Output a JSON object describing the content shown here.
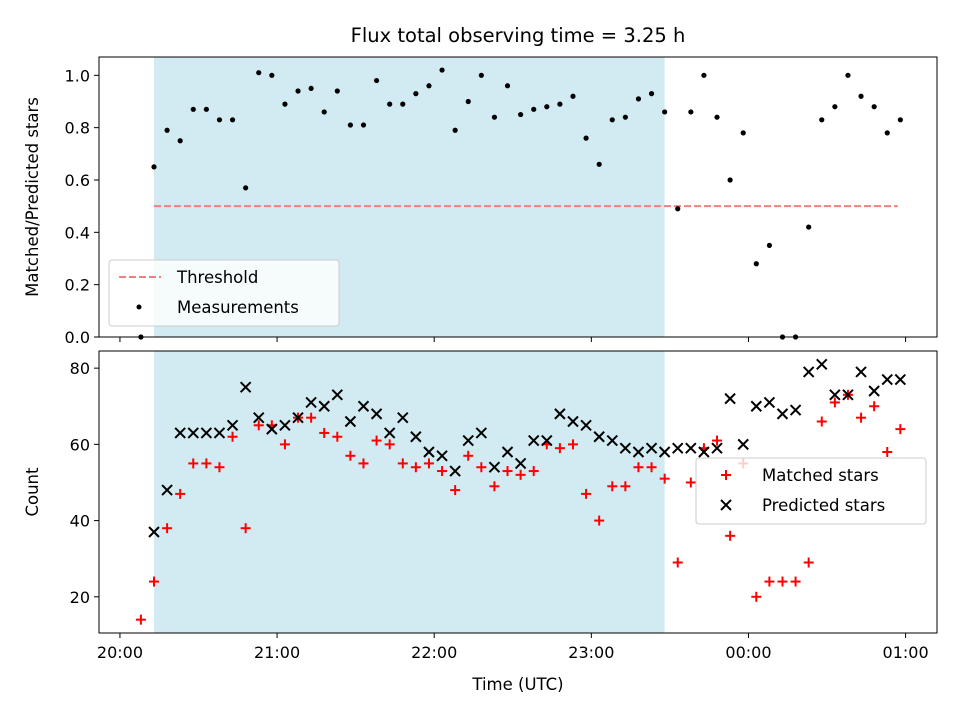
{
  "chart_data": [
    {
      "type": "scatter",
      "title": "Flux total observing time = 3.25 h",
      "xlabel": "",
      "ylabel": "Matched/Predicted stars",
      "xlim": [
        "19:52",
        "01:12"
      ],
      "ylim": [
        0.0,
        1.07
      ],
      "yticks": [
        0.0,
        0.2,
        0.4,
        0.6,
        0.8,
        1.0
      ],
      "ytick_labels": [
        "0.0",
        "0.2",
        "0.4",
        "0.6",
        "0.8",
        "1.0"
      ],
      "xticks": [
        "20:00",
        "21:00",
        "22:00",
        "23:00",
        "00:00",
        "01:00"
      ],
      "shaded_interval": {
        "start": "20:13",
        "end": "23:28",
        "color": "#add8e6"
      },
      "legend": {
        "placement": "lower-left"
      },
      "threshold": {
        "name": "Threshold",
        "value": 0.5,
        "x": [
          "20:13",
          "00:57"
        ],
        "color": "#f08080"
      },
      "series": [
        {
          "name": "Measurements",
          "marker": "dot",
          "color": "#000000",
          "x": [
            "20:08",
            "20:13",
            "20:18",
            "20:23",
            "20:28",
            "20:33",
            "20:38",
            "20:43",
            "20:48",
            "20:53",
            "20:58",
            "21:03",
            "21:08",
            "21:13",
            "21:18",
            "21:23",
            "21:28",
            "21:33",
            "21:38",
            "21:43",
            "21:48",
            "21:53",
            "21:58",
            "22:03",
            "22:08",
            "22:13",
            "22:18",
            "22:23",
            "22:28",
            "22:33",
            "22:38",
            "22:43",
            "22:48",
            "22:53",
            "22:58",
            "23:03",
            "23:08",
            "23:13",
            "23:18",
            "23:23",
            "23:28",
            "23:33",
            "23:38",
            "23:43",
            "23:48",
            "23:53",
            "23:58",
            "00:03",
            "00:08",
            "00:13",
            "00:18",
            "00:23",
            "00:28",
            "00:33",
            "00:38",
            "00:43",
            "00:48",
            "00:53",
            "00:58"
          ],
          "y": [
            0.0,
            0.65,
            0.79,
            0.75,
            0.87,
            0.87,
            0.83,
            0.83,
            0.57,
            1.01,
            1.0,
            0.89,
            0.94,
            0.95,
            0.86,
            0.94,
            0.81,
            0.81,
            0.98,
            0.89,
            0.89,
            0.93,
            0.96,
            1.02,
            0.79,
            0.9,
            1.0,
            0.84,
            0.96,
            0.85,
            0.87,
            0.88,
            0.89,
            0.92,
            0.76,
            0.66,
            0.83,
            0.84,
            0.91,
            0.93,
            0.86,
            0.49,
            0.86,
            1.0,
            0.84,
            0.6,
            0.78,
            0.28,
            0.35,
            0.0,
            0.0,
            0.42,
            0.83,
            0.88,
            1.0,
            0.92,
            0.88,
            0.78,
            0.83
          ]
        }
      ]
    },
    {
      "type": "scatter",
      "title": "",
      "xlabel": "Time (UTC)",
      "ylabel": "Count",
      "xlim": [
        "19:52",
        "01:12"
      ],
      "ylim": [
        10.5,
        84.5
      ],
      "yticks": [
        20,
        40,
        60,
        80
      ],
      "ytick_labels": [
        "20",
        "40",
        "60",
        "80"
      ],
      "xticks": [
        "20:00",
        "21:00",
        "22:00",
        "23:00",
        "00:00",
        "01:00"
      ],
      "shaded_interval": {
        "start": "20:13",
        "end": "23:28",
        "color": "#add8e6"
      },
      "legend": {
        "placement": "center-right"
      },
      "series": [
        {
          "name": "Matched stars",
          "marker": "plus",
          "color": "#ff0000",
          "x": [
            "20:08",
            "20:13",
            "20:18",
            "20:23",
            "20:28",
            "20:33",
            "20:38",
            "20:43",
            "20:48",
            "20:53",
            "20:58",
            "21:03",
            "21:08",
            "21:13",
            "21:18",
            "21:23",
            "21:28",
            "21:33",
            "21:38",
            "21:43",
            "21:48",
            "21:53",
            "21:58",
            "22:03",
            "22:08",
            "22:13",
            "22:18",
            "22:23",
            "22:28",
            "22:33",
            "22:38",
            "22:43",
            "22:48",
            "22:53",
            "22:58",
            "23:03",
            "23:08",
            "23:13",
            "23:18",
            "23:23",
            "23:28",
            "23:33",
            "23:38",
            "23:43",
            "23:48",
            "23:53",
            "23:58",
            "00:03",
            "00:08",
            "00:13",
            "00:18",
            "00:23",
            "00:28",
            "00:33",
            "00:38",
            "00:43",
            "00:48",
            "00:53",
            "00:58"
          ],
          "y": [
            14,
            24,
            38,
            47,
            55,
            55,
            54,
            62,
            38,
            65,
            65,
            60,
            67,
            67,
            63,
            62,
            57,
            55,
            61,
            60,
            55,
            54,
            55,
            53,
            48,
            57,
            54,
            49,
            53,
            52,
            53,
            60,
            59,
            60,
            47,
            40,
            49,
            49,
            54,
            54,
            51,
            29,
            50,
            59,
            61,
            36,
            55,
            20,
            24,
            24,
            24,
            29,
            66,
            71,
            73,
            67,
            70,
            58,
            64
          ]
        },
        {
          "name": "Predicted stars",
          "marker": "x",
          "color": "#000000",
          "x": [
            "20:13",
            "20:18",
            "20:23",
            "20:28",
            "20:33",
            "20:38",
            "20:43",
            "20:48",
            "20:53",
            "20:58",
            "21:03",
            "21:08",
            "21:13",
            "21:18",
            "21:23",
            "21:28",
            "21:33",
            "21:38",
            "21:43",
            "21:48",
            "21:53",
            "21:58",
            "22:03",
            "22:08",
            "22:13",
            "22:18",
            "22:23",
            "22:28",
            "22:33",
            "22:38",
            "22:43",
            "22:48",
            "22:53",
            "22:58",
            "23:03",
            "23:08",
            "23:13",
            "23:18",
            "23:23",
            "23:28",
            "23:33",
            "23:38",
            "23:43",
            "23:48",
            "23:53",
            "23:58",
            "00:03",
            "00:08",
            "00:13",
            "00:18",
            "00:23",
            "00:28",
            "00:33",
            "00:38",
            "00:43",
            "00:48",
            "00:53",
            "00:58"
          ],
          "y": [
            37,
            48,
            63,
            63,
            63,
            63,
            65,
            75,
            67,
            64,
            65,
            67,
            71,
            70,
            73,
            66,
            70,
            68,
            63,
            67,
            62,
            58,
            57,
            53,
            61,
            63,
            54,
            58,
            55,
            61,
            61,
            68,
            66,
            65,
            62,
            61,
            59,
            58,
            59,
            58,
            59,
            59,
            58,
            59,
            72,
            60,
            70,
            71,
            68,
            69,
            79,
            81,
            73,
            73,
            79,
            74,
            77,
            77
          ]
        }
      ]
    }
  ]
}
